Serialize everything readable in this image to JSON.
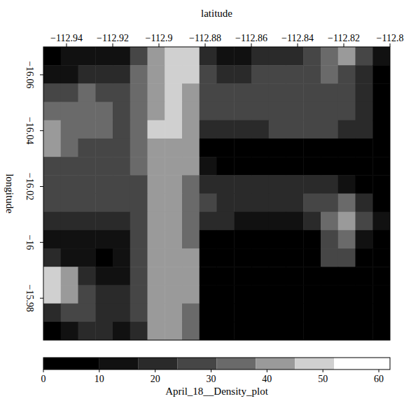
{
  "chart_data": {
    "type": "heatmap",
    "xlabel": "latitude",
    "ylabel": "longitude",
    "xlim": [
      -112.95,
      -112.8
    ],
    "ylim": [
      -16.07,
      -15.965
    ],
    "xticks": [
      {
        "value": -112.94,
        "label": "−112.94"
      },
      {
        "value": -112.92,
        "label": "−112.92"
      },
      {
        "value": -112.9,
        "label": "−112.9"
      },
      {
        "value": -112.88,
        "label": "−112.88"
      },
      {
        "value": -112.86,
        "label": "−112.86"
      },
      {
        "value": -112.84,
        "label": "−112.84"
      },
      {
        "value": -112.82,
        "label": "−112.82"
      },
      {
        "value": -112.8,
        "label": "−112.8"
      }
    ],
    "yticks": [
      {
        "value": -16.06,
        "label": "−16.06"
      },
      {
        "value": -16.04,
        "label": "−16.04"
      },
      {
        "value": -16.02,
        "label": "−16.02"
      },
      {
        "value": -16,
        "label": "−16"
      },
      {
        "value": -15.98,
        "label": "−15.98"
      }
    ],
    "cells": [
      [
        8,
        10,
        12,
        12,
        10,
        30,
        42,
        48,
        45,
        22,
        15,
        15,
        18,
        20,
        22,
        28,
        35,
        38,
        30,
        10
      ],
      [
        14,
        16,
        18,
        20,
        22,
        32,
        44,
        50,
        46,
        25,
        22,
        22,
        24,
        26,
        28,
        30,
        34,
        30,
        22,
        8
      ],
      [
        28,
        30,
        32,
        30,
        28,
        34,
        42,
        46,
        44,
        28,
        26,
        26,
        26,
        28,
        28,
        30,
        30,
        28,
        22,
        6
      ],
      [
        32,
        34,
        35,
        33,
        30,
        35,
        44,
        46,
        42,
        26,
        24,
        24,
        26,
        26,
        26,
        28,
        28,
        26,
        20,
        5
      ],
      [
        40,
        36,
        34,
        32,
        30,
        36,
        45,
        45,
        40,
        22,
        20,
        22,
        22,
        24,
        24,
        24,
        24,
        22,
        18,
        4
      ],
      [
        38,
        32,
        30,
        28,
        28,
        34,
        42,
        44,
        40,
        8,
        6,
        6,
        6,
        6,
        6,
        6,
        6,
        6,
        5,
        3
      ],
      [
        30,
        28,
        28,
        26,
        26,
        32,
        40,
        42,
        38,
        10,
        8,
        8,
        8,
        8,
        8,
        8,
        6,
        5,
        4,
        3
      ],
      [
        28,
        26,
        26,
        24,
        24,
        30,
        38,
        40,
        36,
        22,
        22,
        20,
        20,
        20,
        20,
        20,
        18,
        10,
        6,
        4
      ],
      [
        26,
        26,
        26,
        24,
        24,
        30,
        38,
        40,
        36,
        24,
        22,
        22,
        22,
        22,
        22,
        24,
        28,
        34,
        20,
        6
      ],
      [
        22,
        22,
        20,
        20,
        22,
        30,
        40,
        42,
        36,
        18,
        18,
        16,
        16,
        16,
        16,
        20,
        36,
        40,
        28,
        10
      ],
      [
        16,
        14,
        14,
        14,
        16,
        28,
        40,
        42,
        36,
        4,
        4,
        4,
        4,
        4,
        4,
        6,
        30,
        34,
        14,
        4
      ],
      [
        20,
        16,
        10,
        8,
        10,
        28,
        40,
        44,
        38,
        3,
        3,
        3,
        3,
        3,
        3,
        4,
        26,
        28,
        8,
        2
      ],
      [
        50,
        42,
        20,
        14,
        14,
        28,
        42,
        44,
        38,
        3,
        2,
        2,
        2,
        2,
        2,
        3,
        4,
        4,
        2,
        1
      ],
      [
        45,
        40,
        24,
        20,
        18,
        26,
        40,
        44,
        38,
        2,
        2,
        2,
        2,
        2,
        2,
        2,
        2,
        2,
        1,
        1
      ],
      [
        18,
        26,
        24,
        22,
        18,
        24,
        40,
        42,
        36,
        2,
        2,
        2,
        2,
        2,
        2,
        2,
        2,
        2,
        1,
        1
      ],
      [
        8,
        14,
        20,
        18,
        14,
        22,
        38,
        40,
        34,
        2,
        2,
        2,
        2,
        2,
        2,
        2,
        2,
        2,
        1,
        1
      ]
    ],
    "colorbar_label": "April_18__Density_plot",
    "colorbar_range": [
      0,
      62
    ],
    "colorbar_ticks": [
      0,
      10,
      20,
      30,
      40,
      50,
      60
    ],
    "color_levels": [
      0,
      10,
      17,
      24,
      31,
      38,
      45,
      52,
      62
    ]
  }
}
